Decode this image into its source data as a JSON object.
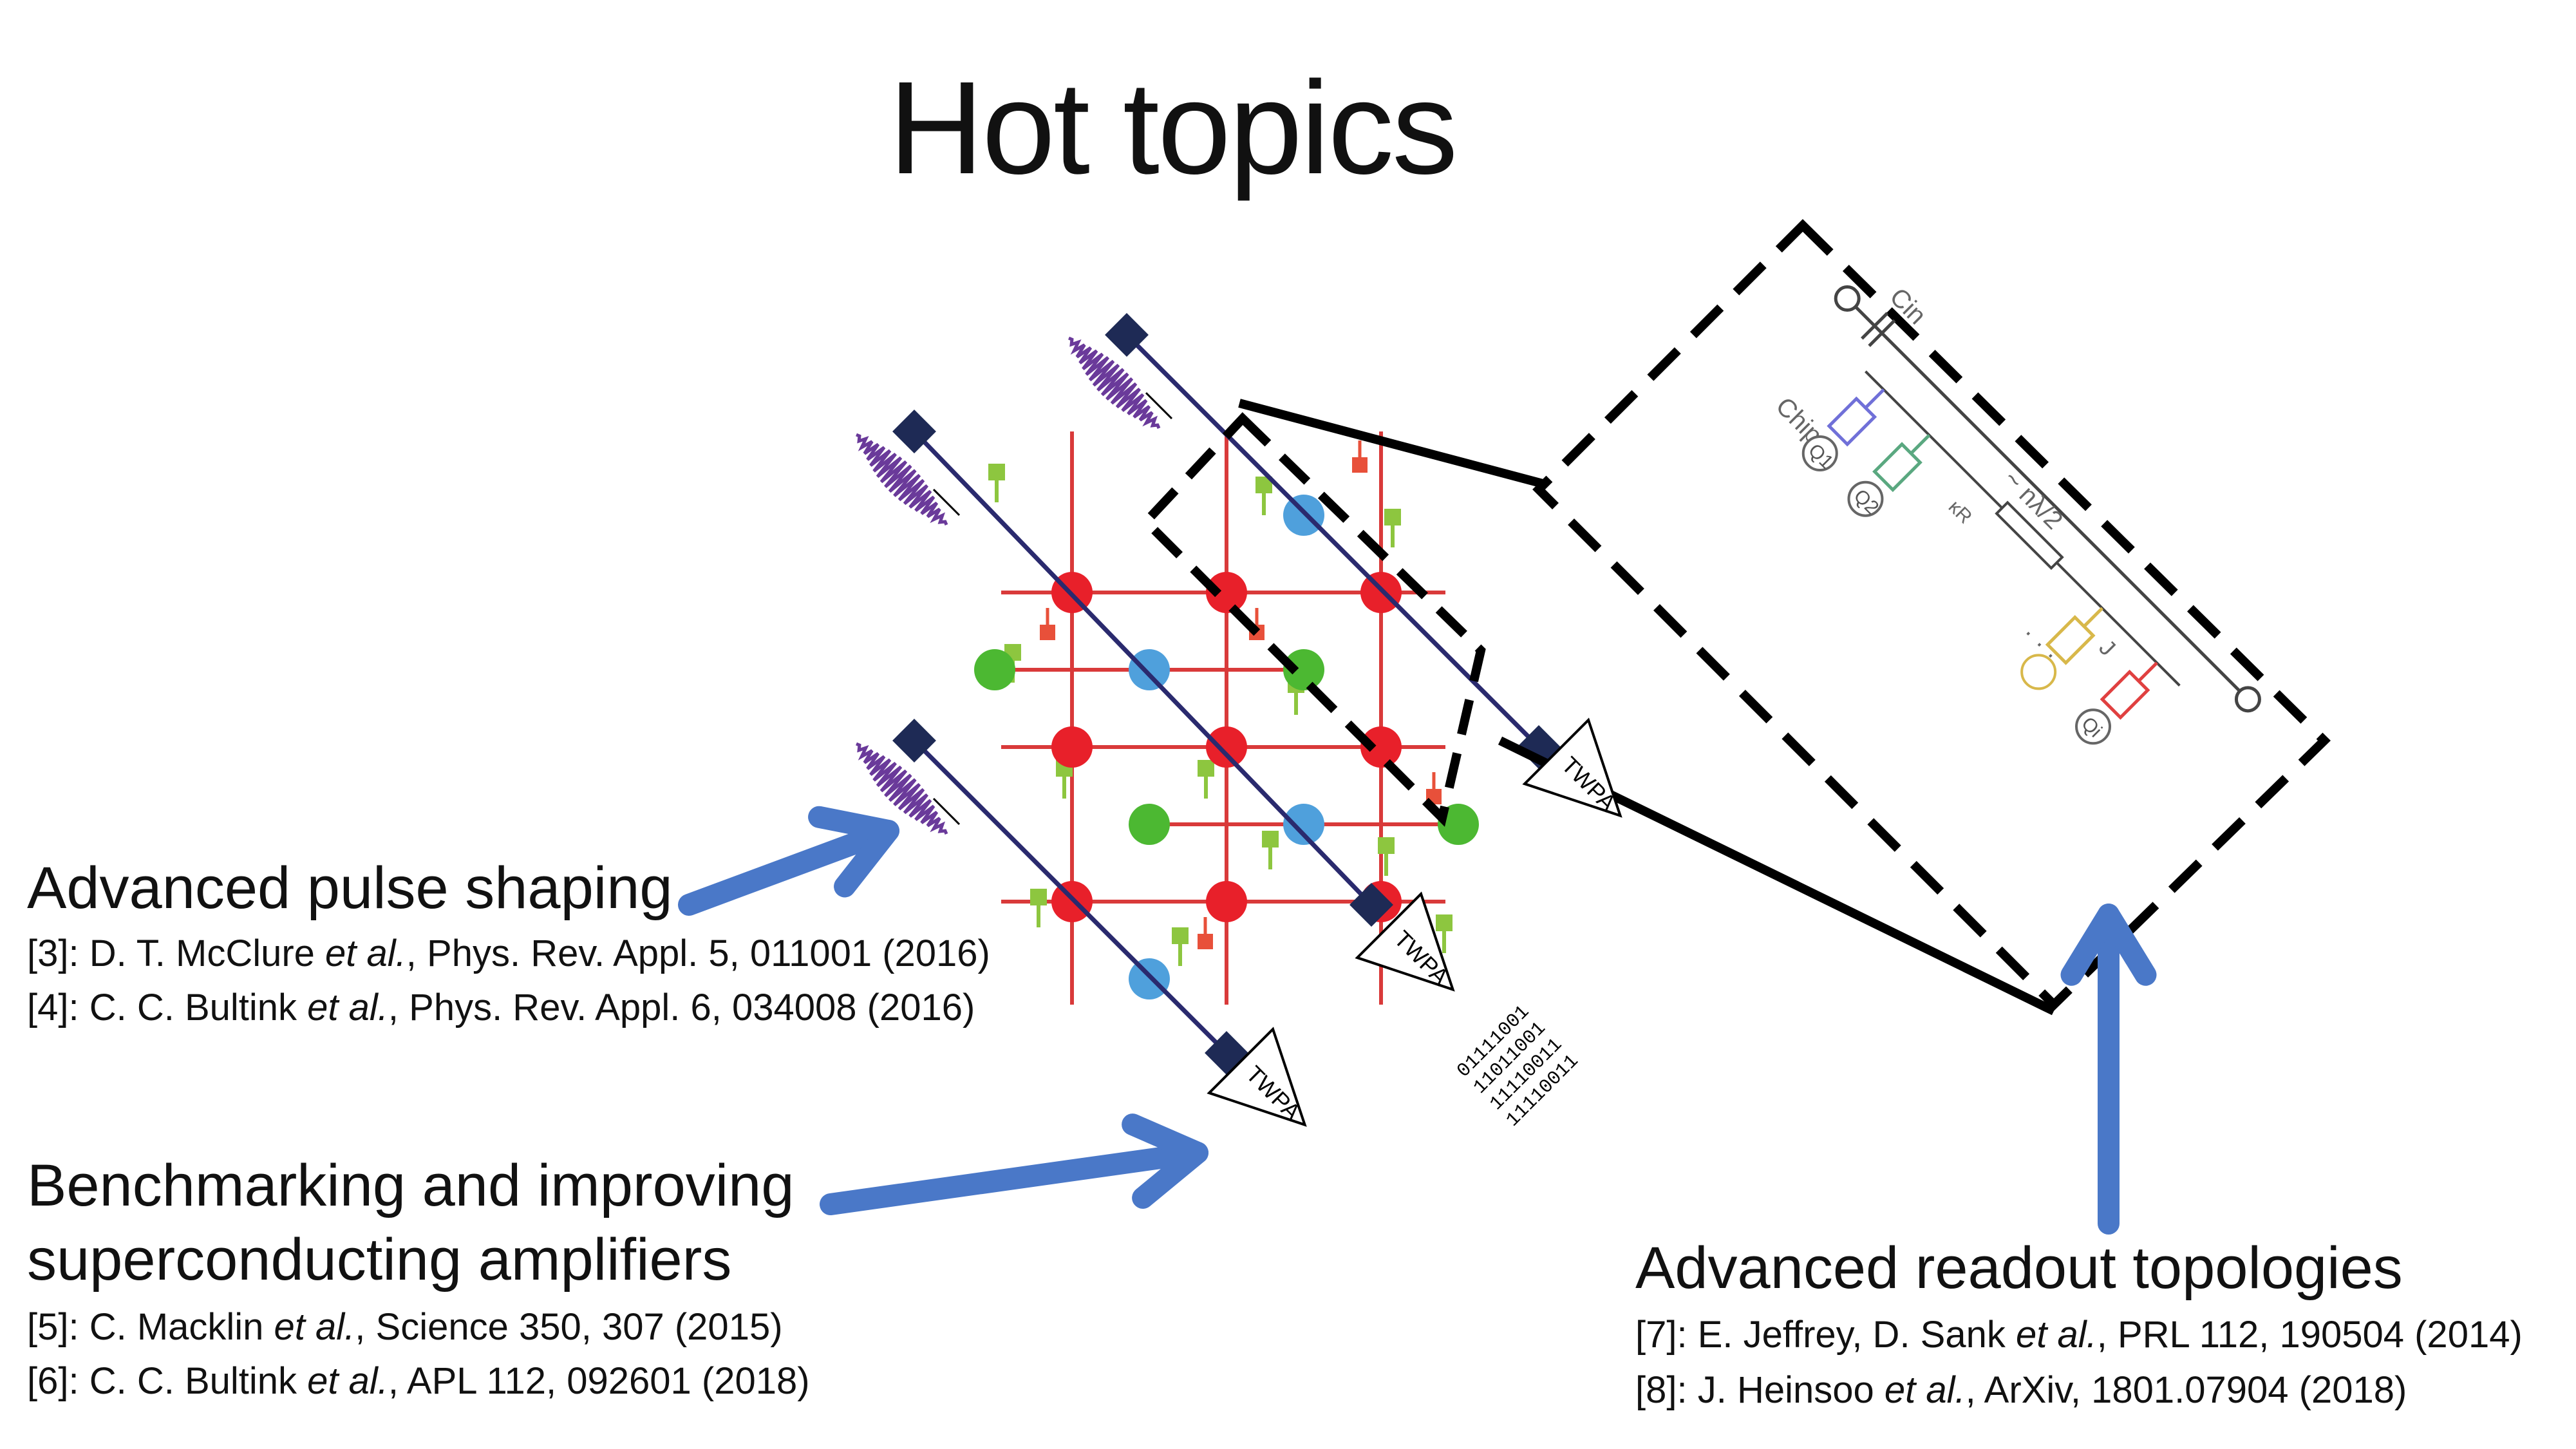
{
  "title": "Hot topics",
  "topics": [
    {
      "heading_lines": [
        "Advanced pulse shaping"
      ],
      "refs": [
        {
          "pre": "[3]: D. T. McClure ",
          "etal": "et al.",
          "post": ", Phys. Rev. Appl. 5, 011001 (2016)"
        },
        {
          "pre": "[4]: C. C. Bultink ",
          "etal": "et al.",
          "post": ", Phys. Rev. Appl. 6, 034008 (2016)"
        }
      ]
    },
    {
      "heading_lines": [
        "Benchmarking and improving",
        "superconducting amplifiers"
      ],
      "refs": [
        {
          "pre": "[5]: C. Macklin ",
          "etal": "et al.",
          "post": ", Science 350, 307 (2015)"
        },
        {
          "pre": "[6]: C. C. Bultink ",
          "etal": "et al.",
          "post": ", APL 112, 092601 (2018)"
        }
      ]
    },
    {
      "heading_lines": [
        "Advanced readout topologies"
      ],
      "refs": [
        {
          "pre": "[7]: E. Jeffrey, D. Sank ",
          "etal": "et al.",
          "post": ", PRL 112, 190504 (2014)"
        },
        {
          "pre": "[8]: J. Heinsoo ",
          "etal": "et al.",
          "post": ", ArXiv, 1801.07904 (2018)"
        }
      ]
    }
  ],
  "diagram": {
    "twpa_label": "TWPA",
    "bitstrings": [
      "01111001",
      "11011001",
      "11110011",
      "11110011"
    ],
    "inset": {
      "chip_label": "Chip",
      "cin_label": "Cin",
      "length_label": "~ nλ/2",
      "kappa_label": "κR",
      "j_label": "J",
      "ellipsis": "· · ·",
      "qubit_labels": [
        "Q1",
        "Q2",
        "Qi"
      ]
    },
    "colors": {
      "qubit_red": "#e8202a",
      "qubit_green": "#4cb832",
      "qubit_blue": "#4fa0dc",
      "coupler": "#d93a3a",
      "flux_line": "#8dc63f",
      "flux_box": "#e8503a",
      "feedline": "#2a2a6e",
      "feedline_port": "#1e2a55",
      "pulse": "#6a3a9a",
      "arrow": "#4a78c8"
    }
  }
}
